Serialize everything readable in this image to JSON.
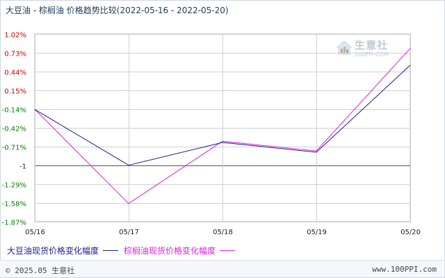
{
  "title": "大豆油 - 棕榈油 价格趋势比较(2022-05-16 - 2022-05-20)",
  "watermark": {
    "text": "生意社",
    "url": "100PPI.COM"
  },
  "footer": {
    "left": "© 2025.05 生意社",
    "right": "www.100PPI.com"
  },
  "colors": {
    "soybean": "#1a1a8c",
    "palm": "#e020e0",
    "positive_tick": "#cc0000",
    "negative_tick": "#008000",
    "grid": "#d0d0d0"
  },
  "chart_data": {
    "type": "line",
    "title": "大豆油 - 棕榈油 价格趋势比较(2022-05-16 - 2022-05-20)",
    "categories": [
      "05/16",
      "05/17",
      "05/18",
      "05/19",
      "05/20"
    ],
    "y_ticks": [
      "1.02%",
      "0.73%",
      "0.44%",
      "0.15%",
      "-0.14%",
      "-0.42%",
      "-0.71%",
      "-1",
      "-1.29%",
      "-1.58%",
      "-1.87%"
    ],
    "y_tick_values": [
      1.02,
      0.73,
      0.44,
      0.15,
      -0.14,
      -0.42,
      -0.71,
      -1.0,
      -1.29,
      -1.58,
      -1.87
    ],
    "ylim": [
      -1.87,
      1.02
    ],
    "grid": true,
    "baseline": -1.0,
    "series": [
      {
        "name": "大豆油现货价格变化幅度",
        "color": "#1a1a8c",
        "values": [
          -0.14,
          -1.0,
          -0.65,
          -0.8,
          0.54
        ]
      },
      {
        "name": "棕榈油现货价格变化幅度",
        "color": "#e020e0",
        "values": [
          -0.14,
          -1.59,
          -0.63,
          -0.78,
          0.8
        ]
      }
    ],
    "legend_position": "bottom-left"
  }
}
